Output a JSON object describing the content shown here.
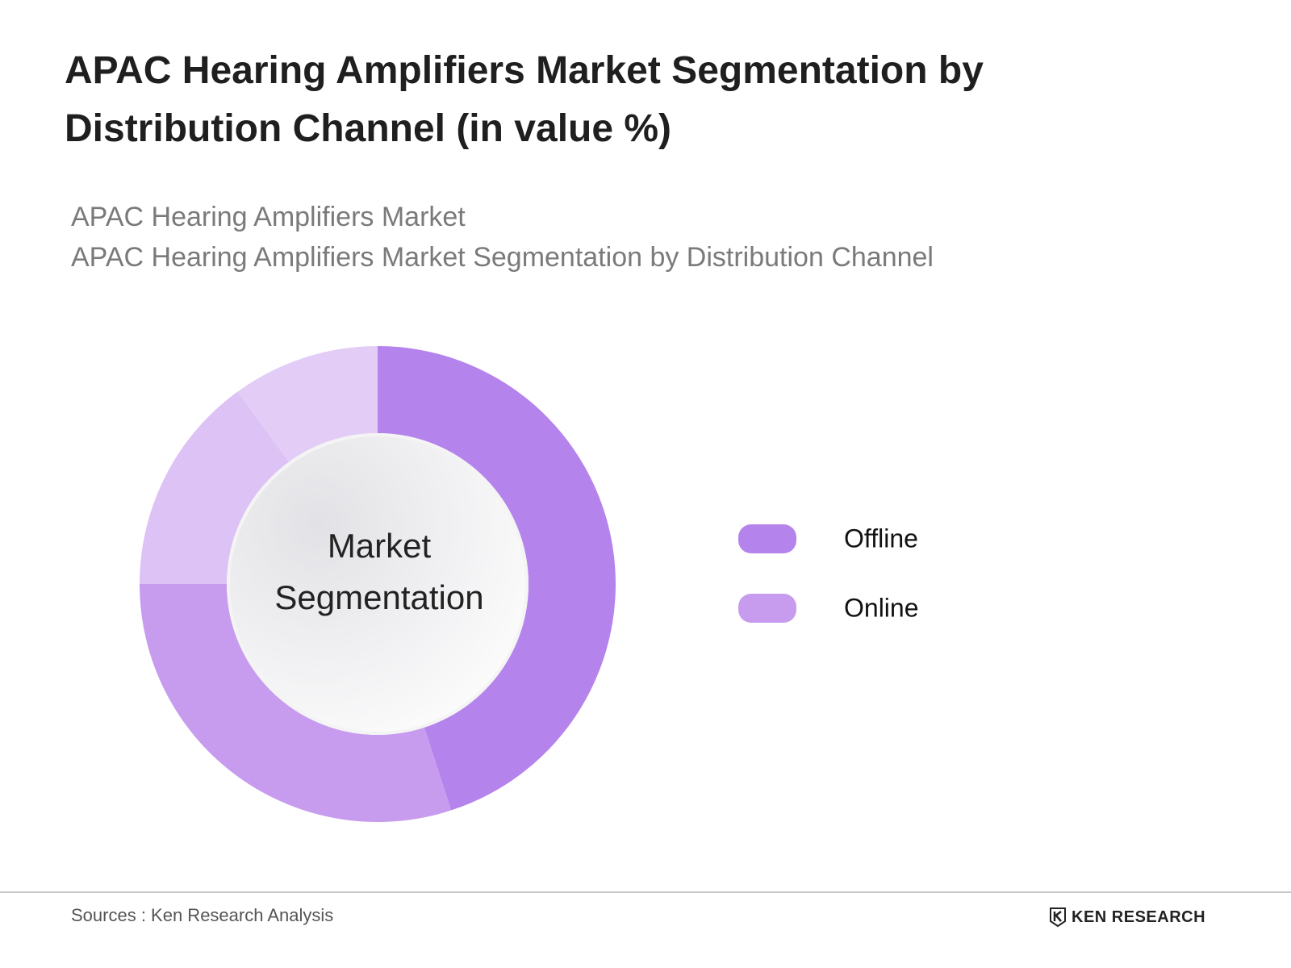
{
  "chart_data": {
    "type": "donut",
    "title": "APAC Hearing Amplifiers Market Segmentation by Distribution Channel (in value %)",
    "subtitles": [
      "APAC Hearing Amplifiers Market",
      "APAC Hearing Amplifiers Market Segmentation by Distribution Channel"
    ],
    "center_label": "Market Segmentation",
    "categories": [
      "Offline",
      "Online",
      null,
      null
    ],
    "values": [
      45,
      30,
      15,
      10
    ],
    "colors": [
      "#b583ec",
      "#c79cef",
      "#dcc2f5",
      "#e3cdf7"
    ],
    "legend": "right"
  },
  "footer": {
    "source": "Sources : Ken Research Analysis",
    "logo": "KEN RESEARCH"
  }
}
